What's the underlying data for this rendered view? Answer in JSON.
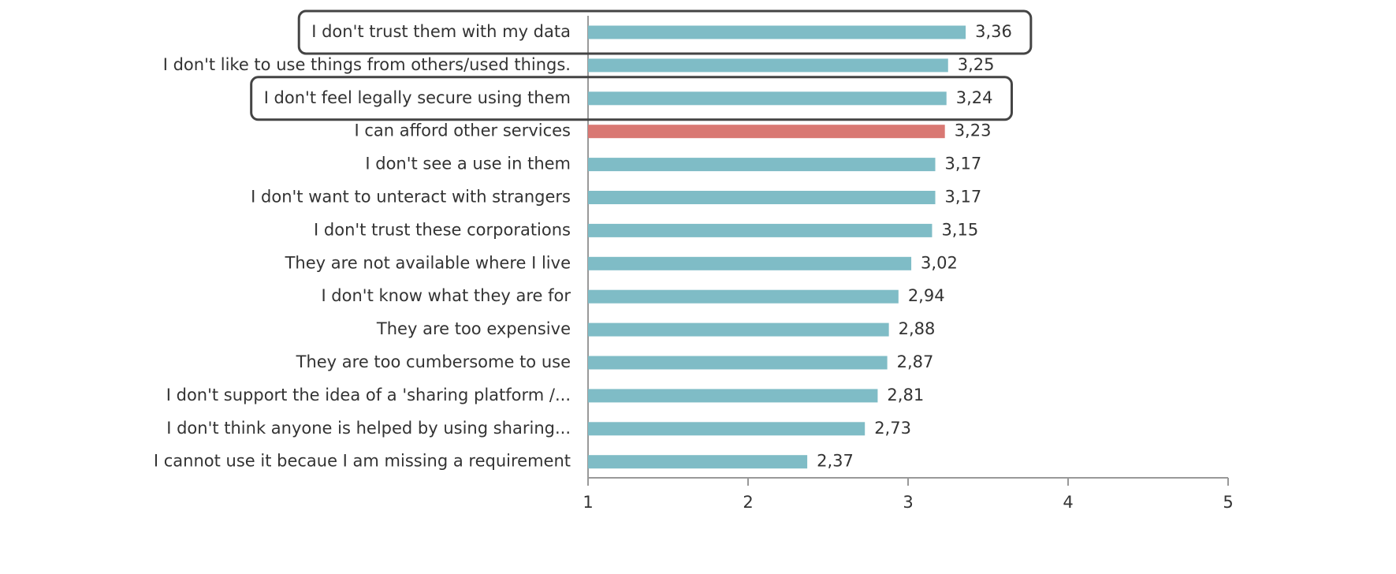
{
  "chart_data": {
    "type": "barh",
    "categories": [
      "I don't trust them with my data",
      "I don't like to use things from others/used things.",
      "I don't feel legally secure using them",
      "I can afford other services",
      "I don't see a use in them",
      "I don't want to unteract with strangers",
      "I don't trust these corporations",
      "They are not available where I live",
      "I don't know what they are for",
      "They are too expensive",
      "They are too cumbersome to use",
      "I don't support the idea of a 'sharing platform /...",
      "I don't think anyone is helped by using sharing...",
      "I cannot use it becaue I am missing a requirement"
    ],
    "values": [
      3.36,
      3.25,
      3.24,
      3.23,
      3.17,
      3.17,
      3.15,
      3.02,
      2.94,
      2.88,
      2.87,
      2.81,
      2.73,
      2.37
    ],
    "value_labels": [
      "3,36",
      "3,25",
      "3,24",
      "3,23",
      "3,17",
      "3,17",
      "3,15",
      "3,02",
      "2,94",
      "2,88",
      "2,87",
      "2,81",
      "2,73",
      "2,37"
    ],
    "colors": [
      "#7fbcc6",
      "#7fbcc6",
      "#7fbcc6",
      "#d97873",
      "#7fbcc6",
      "#7fbcc6",
      "#7fbcc6",
      "#7fbcc6",
      "#7fbcc6",
      "#7fbcc6",
      "#7fbcc6",
      "#7fbcc6",
      "#7fbcc6",
      "#7fbcc6"
    ],
    "highlight": [
      0,
      2
    ],
    "xlim": [
      1,
      5
    ],
    "xticks": [
      1,
      2,
      3,
      4,
      5
    ]
  }
}
